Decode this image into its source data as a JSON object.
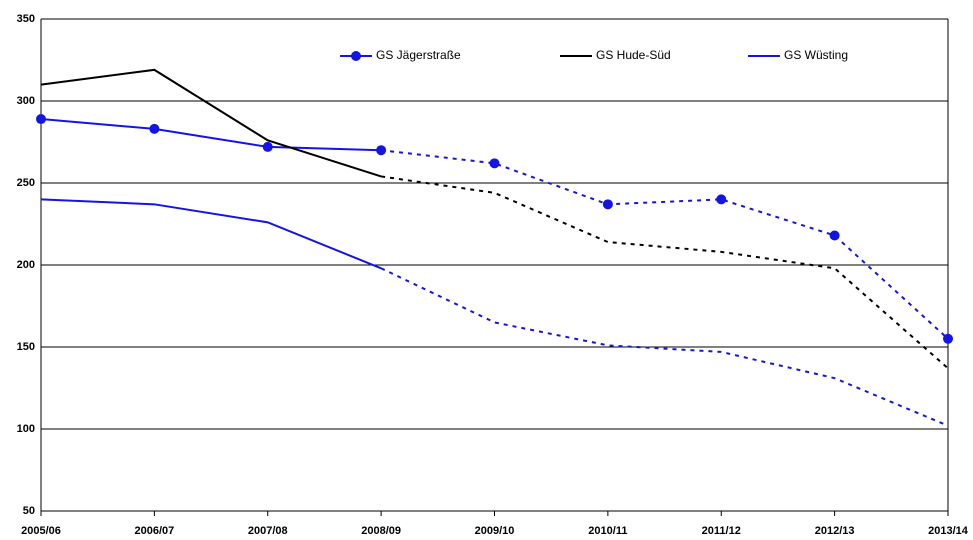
{
  "chart_data": {
    "type": "line",
    "categories": [
      "2005/06",
      "2006/07",
      "2007/08",
      "2008/09",
      "2009/10",
      "2010/11",
      "2011/12",
      "2012/13",
      "2013/14"
    ],
    "series": [
      {
        "name": "GS Jägerstraße",
        "color": "#1414e6",
        "marker": "circle",
        "values": [
          289,
          283,
          272,
          270,
          262,
          237,
          240,
          218,
          155
        ]
      },
      {
        "name": "GS Hude-Süd",
        "color": "#000000",
        "marker": "none",
        "values": [
          310,
          319,
          276,
          254,
          244,
          214,
          208,
          198,
          137
        ]
      },
      {
        "name": "GS Wüsting",
        "color": "#1414e6",
        "marker": "none",
        "values": [
          240,
          237,
          226,
          198,
          165,
          151,
          147,
          131,
          102
        ]
      }
    ],
    "dashed_from": 3,
    "ylim": [
      50,
      350
    ],
    "yticks": [
      50,
      100,
      150,
      200,
      250,
      300,
      350
    ],
    "grid": true,
    "legend": "top"
  }
}
